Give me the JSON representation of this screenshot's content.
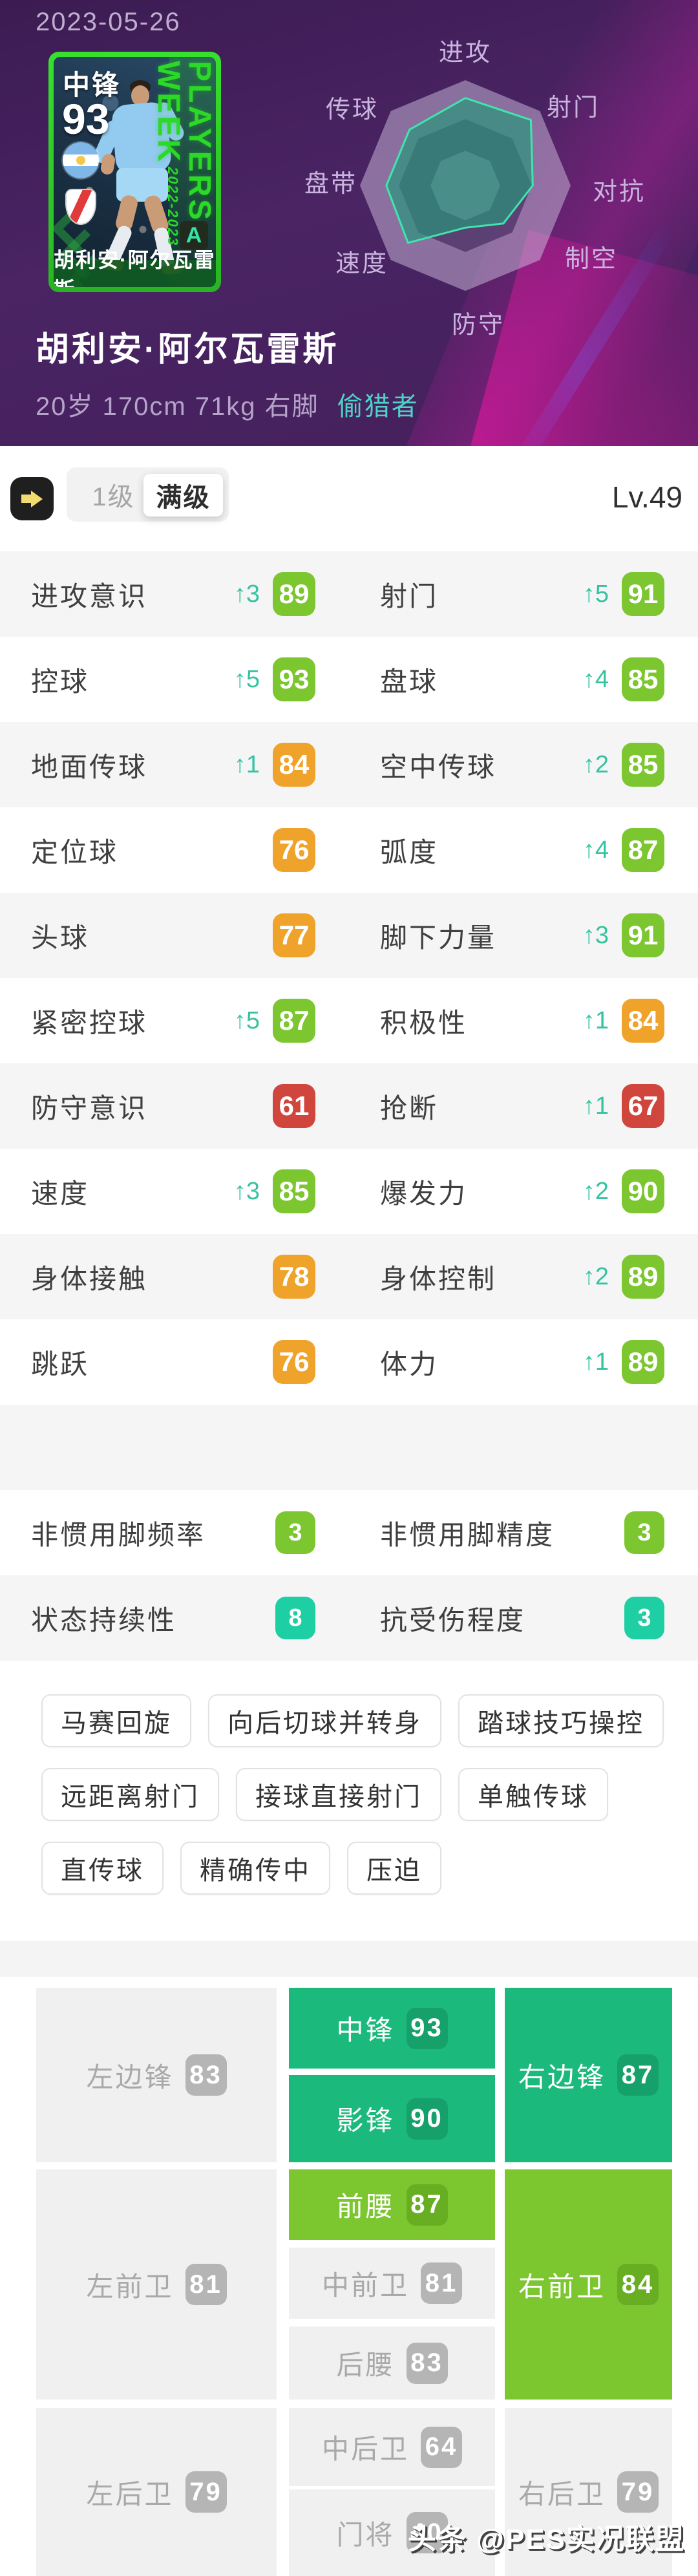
{
  "colors": {
    "green": "#7CC62F",
    "orange": "#EFA32B",
    "red": "#D0453C",
    "teal": "#1FCFA4",
    "pos_teal": "#1CB97D",
    "pos_green": "#7CC62F",
    "arrow_accent": "#35C3A2",
    "card_green": "#2FC32B",
    "header_purple": "#45215E",
    "magenta": "#C41E9E"
  },
  "status_bar": {
    "date": "2023-05-26"
  },
  "header": {
    "card": {
      "position_label": "中锋",
      "rating": "93",
      "series": "PLAYERS WEEK",
      "season": "2022-2023",
      "grade": "A",
      "name_bar": "胡利安·阿尔瓦雷斯",
      "flag_icon": "argentina-flag",
      "club_icon": "river-plate-badge"
    },
    "player_name": "胡利安·阿尔瓦雷斯",
    "info_line": "20岁 170cm 71kg 右脚",
    "playstyle": "偷猎者"
  },
  "chart_data": {
    "type": "radar",
    "labels": [
      "进攻",
      "射门",
      "对抗",
      "制空",
      "防守",
      "速度",
      "盘带",
      "传球"
    ],
    "levels": [
      0.83,
      0.88,
      0.64,
      0.51,
      0.4,
      0.77,
      0.75,
      0.75
    ],
    "max": 1.0,
    "legend_position": "none"
  },
  "toolbar": {
    "tab_level1": "1级",
    "tab_max": "满级",
    "level": "Lv.49"
  },
  "stats": {
    "rows": [
      [
        {
          "label": "进攻意识",
          "up": 3,
          "value": 89,
          "color": "green"
        },
        {
          "label": "射门",
          "up": 5,
          "value": 91,
          "color": "green"
        }
      ],
      [
        {
          "label": "控球",
          "up": 5,
          "value": 93,
          "color": "green"
        },
        {
          "label": "盘球",
          "up": 4,
          "value": 85,
          "color": "green"
        }
      ],
      [
        {
          "label": "地面传球",
          "up": 1,
          "value": 84,
          "color": "orange"
        },
        {
          "label": "空中传球",
          "up": 2,
          "value": 85,
          "color": "green"
        }
      ],
      [
        {
          "label": "定位球",
          "up": null,
          "value": 76,
          "color": "orange"
        },
        {
          "label": "弧度",
          "up": 4,
          "value": 87,
          "color": "green"
        }
      ],
      [
        {
          "label": "头球",
          "up": null,
          "value": 77,
          "color": "orange"
        },
        {
          "label": "脚下力量",
          "up": 3,
          "value": 91,
          "color": "green"
        }
      ],
      [
        {
          "label": "紧密控球",
          "up": 5,
          "value": 87,
          "color": "green"
        },
        {
          "label": "积极性",
          "up": 1,
          "value": 84,
          "color": "orange"
        }
      ],
      [
        {
          "label": "防守意识",
          "up": null,
          "value": 61,
          "color": "red"
        },
        {
          "label": "抢断",
          "up": 1,
          "value": 67,
          "color": "red"
        }
      ],
      [
        {
          "label": "速度",
          "up": 3,
          "value": 85,
          "color": "green"
        },
        {
          "label": "爆发力",
          "up": 2,
          "value": 90,
          "color": "green"
        }
      ],
      [
        {
          "label": "身体接触",
          "up": null,
          "value": 78,
          "color": "orange"
        },
        {
          "label": "身体控制",
          "up": 2,
          "value": 89,
          "color": "green"
        }
      ],
      [
        {
          "label": "跳跃",
          "up": null,
          "value": 76,
          "color": "orange"
        },
        {
          "label": "体力",
          "up": 1,
          "value": 89,
          "color": "green"
        }
      ]
    ]
  },
  "special": {
    "rows": [
      [
        {
          "label": "非惯用脚频率",
          "value": 3,
          "color": "green"
        },
        {
          "label": "非惯用脚精度",
          "value": 3,
          "color": "green"
        }
      ],
      [
        {
          "label": "状态持续性",
          "value": 8,
          "color": "teal"
        },
        {
          "label": "抗受伤程度",
          "value": 3,
          "color": "teal"
        }
      ]
    ]
  },
  "skills": [
    "马赛回旋",
    "向后切球并转身",
    "踏球技巧操控",
    "远距离射门",
    "接球直接射门",
    "单触传球",
    "直传球",
    "精确传中",
    "压迫"
  ],
  "positions": {
    "blocks": [
      {
        "left": {
          "label": "左边锋",
          "value": "83",
          "tone": "gray"
        },
        "middle": [
          {
            "label": "中锋",
            "value": "93",
            "tone": "teal"
          },
          {
            "label": "影锋",
            "value": "90",
            "tone": "teal"
          }
        ],
        "right": {
          "label": "右边锋",
          "value": "87",
          "tone": "teal"
        }
      },
      {
        "left": {
          "label": "左前卫",
          "value": "81",
          "tone": "gray"
        },
        "middle": [
          {
            "label": "前腰",
            "value": "87",
            "tone": "green"
          },
          {
            "label": "中前卫",
            "value": "81",
            "tone": "gray"
          },
          {
            "label": "后腰",
            "value": "83",
            "tone": "gray"
          }
        ],
        "right": {
          "label": "右前卫",
          "value": "84",
          "tone": "green"
        }
      },
      {
        "left": {
          "label": "左后卫",
          "value": "79",
          "tone": "gray"
        },
        "middle": [
          {
            "label": "中后卫",
            "value": "64",
            "tone": "gray"
          },
          {
            "label": "门将",
            "value": "40",
            "tone": "gray"
          }
        ],
        "right": {
          "label": "右后卫",
          "value": "79",
          "tone": "gray"
        }
      }
    ]
  },
  "watermark": "头条 @PES实况联盟"
}
